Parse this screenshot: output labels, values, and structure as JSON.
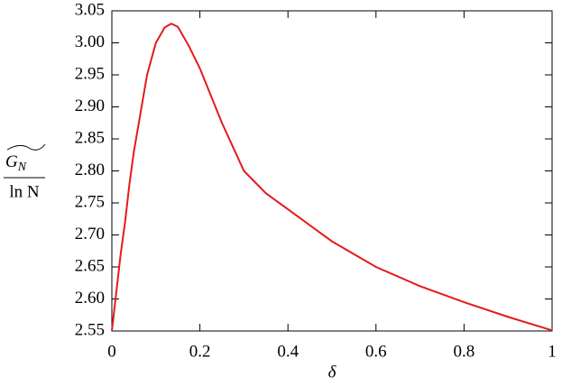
{
  "chart_data": {
    "type": "line",
    "xlabel": "δ",
    "ylabel": {
      "numerator": {
        "base": "G",
        "sub": "N"
      },
      "denominator": "ln N"
    },
    "x": [
      0,
      0.01,
      0.02,
      0.03,
      0.04,
      0.05,
      0.06,
      0.08,
      0.1,
      0.12,
      0.135,
      0.15,
      0.175,
      0.2,
      0.25,
      0.3,
      0.35,
      0.4,
      0.5,
      0.6,
      0.7,
      0.8,
      0.9,
      1
    ],
    "series": [
      {
        "color": "#e41a1c",
        "values": [
          2.55,
          2.61,
          2.67,
          2.72,
          2.78,
          2.83,
          2.87,
          2.95,
          3.0,
          3.024,
          3.03,
          3.025,
          2.995,
          2.96,
          2.875,
          2.8,
          2.765,
          2.74,
          2.69,
          2.65,
          2.62,
          2.595,
          2.572,
          2.551
        ]
      }
    ],
    "xlim": [
      0,
      1
    ],
    "xticks": [
      0,
      0.2,
      0.4,
      0.6,
      0.8,
      1
    ],
    "ylim": [
      2.55,
      3.05
    ],
    "yticks": [
      2.55,
      {
        "value": 2.6,
        "label": "2.60"
      },
      2.65,
      {
        "value": 2.7,
        "label": "2.70"
      },
      2.75,
      {
        "value": 2.8,
        "label": "2.80"
      },
      2.85,
      {
        "value": 2.9,
        "label": "2.90"
      },
      2.95,
      {
        "value": 3.0,
        "label": "3.00"
      },
      3.05
    ],
    "grid": false
  }
}
